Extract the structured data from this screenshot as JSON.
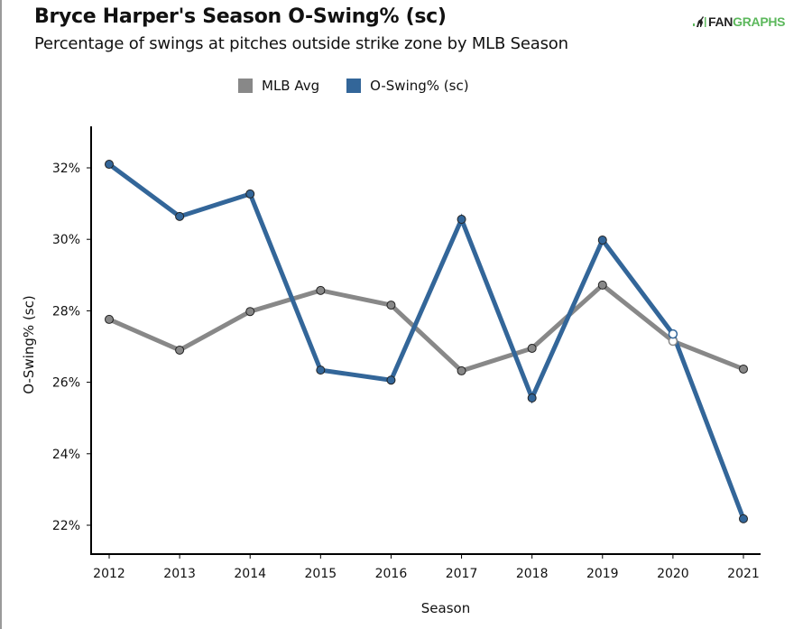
{
  "header": {
    "title": "Bryce Harper's Season O-Swing% (sc)",
    "subtitle": "Percentage of swings at pitches outside strike zone by MLB Season",
    "logo_left": "FAN",
    "logo_right": "GRAPHS"
  },
  "colors": {
    "mlb_avg": "#888888",
    "o_swing": "#336699",
    "logo_green": "#5cb85c"
  },
  "chart_data": {
    "type": "line",
    "title": "Bryce Harper's Season O-Swing% (sc)",
    "subtitle": "Percentage of swings at pitches outside strike zone by MLB Season",
    "xlabel": "Season",
    "ylabel": "O-Swing% (sc)",
    "x": [
      2012,
      2013,
      2014,
      2015,
      2016,
      2017,
      2018,
      2019,
      2020,
      2021
    ],
    "x_tick_labels": [
      "2012",
      "2013",
      "2014",
      "2015",
      "2016",
      "2017",
      "2018",
      "2019",
      "2020",
      "2021"
    ],
    "y_ticks": [
      22,
      24,
      26,
      28,
      30,
      32
    ],
    "y_tick_labels": [
      "22%",
      "24%",
      "26%",
      "28%",
      "30%",
      "32%"
    ],
    "ylim": [
      21.2,
      33.2
    ],
    "grid": false,
    "legend_position": "top-center",
    "hollow_marker_x": [
      2020
    ],
    "series": [
      {
        "name": "MLB Avg",
        "color": "#888888",
        "values": [
          27.76,
          26.9,
          27.98,
          28.57,
          28.16,
          26.32,
          26.95,
          28.72,
          27.15,
          26.37
        ]
      },
      {
        "name": "O-Swing% (sc)",
        "color": "#336699",
        "values": [
          32.1,
          30.64,
          31.27,
          26.34,
          26.06,
          30.56,
          25.56,
          29.98,
          27.35,
          22.18
        ]
      }
    ]
  }
}
